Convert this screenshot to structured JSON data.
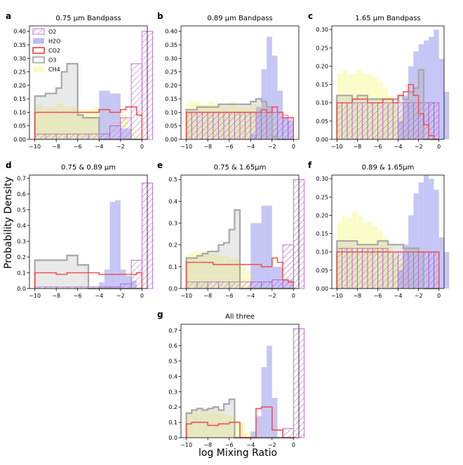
{
  "figure": {
    "ylabel": "Probability Density",
    "xlabel": "log Mixing Ratio"
  },
  "legend": {
    "location": "upper-left of panel a",
    "entries": [
      {
        "name": "O2",
        "style": "hatched",
        "color": "#b44fc8"
      },
      {
        "name": "H2O",
        "style": "fill",
        "color": "#bcbcf4"
      },
      {
        "name": "CO2",
        "style": "step",
        "color": "#ef5350"
      },
      {
        "name": "O3",
        "style": "step",
        "color": "#a8a8a8"
      },
      {
        "name": "CH4",
        "style": "fill",
        "color": "#fbfbc0"
      }
    ]
  },
  "chart_data": [
    {
      "type": "bar",
      "panel_letter": "a",
      "title": "0.75 µm Bandpass",
      "xlim": [
        -10.5,
        0.5
      ],
      "ylim": [
        0,
        0.42
      ],
      "xticks": [
        -10,
        -8,
        -6,
        -4,
        -2,
        0
      ],
      "yticks": [
        0.0,
        0.05,
        0.1,
        0.15,
        0.2,
        0.25,
        0.3,
        0.35,
        0.4
      ],
      "ytick_labels": [
        "0.00",
        "0.05",
        "0.10",
        "0.15",
        "0.20",
        "0.25",
        "0.30",
        "0.35",
        "0.40"
      ],
      "series": [
        {
          "name": "CH4",
          "x0": -10,
          "dx": 0.667,
          "values": [
            0.13,
            0.12,
            0.12,
            0.13,
            0.12,
            0.12,
            0.11,
            0.11,
            0.12,
            0.12,
            0.13,
            0.11,
            0.09,
            0.04,
            0.0
          ]
        },
        {
          "name": "H2O",
          "x0": -10,
          "dx": 1.0,
          "values": [
            0.0,
            0.0,
            0.0,
            0.0,
            0.0,
            0.0,
            0.0,
            0.0,
            0.0,
            0.0,
            0.0
          ]
        },
        {
          "name": "H2O_b",
          "x0": -4,
          "dx": 1.0,
          "values": [
            0.18,
            0.17,
            0.04,
            0.0
          ]
        },
        {
          "name": "O3",
          "x0": -10,
          "dx": 0.5,
          "values": [
            0.16,
            0.16,
            0.17,
            0.17,
            0.19,
            0.25,
            0.28,
            0.28,
            0.09,
            0.08,
            0.08,
            0.08,
            0.0,
            0.0,
            0.0,
            0.0,
            0.0,
            0.0,
            0.0,
            0.0
          ]
        },
        {
          "name": "CO2",
          "x0": -10,
          "dx": 0.5,
          "values": [
            0.1,
            0.1,
            0.1,
            0.1,
            0.1,
            0.1,
            0.1,
            0.1,
            0.1,
            0.1,
            0.1,
            0.1,
            0.11,
            0.11,
            0.1,
            0.1,
            0.11,
            0.12,
            0.12,
            0.09
          ]
        },
        {
          "name": "O2",
          "x0": -10,
          "dx": 1.0,
          "values": [
            0.02,
            0.02,
            0.02,
            0.02,
            0.02,
            0.02,
            0.02,
            0.05,
            0.08,
            0.28,
            0.4
          ]
        }
      ]
    },
    {
      "type": "bar",
      "panel_letter": "b",
      "title": "0.89 µm Bandpass",
      "xlim": [
        -10.5,
        0.5
      ],
      "ylim": [
        0,
        0.42
      ],
      "xticks": [
        -10,
        -8,
        -6,
        -4,
        -2,
        0
      ],
      "yticks": [
        0.0,
        0.05,
        0.1,
        0.15,
        0.2,
        0.25,
        0.3,
        0.35,
        0.4
      ],
      "ytick_labels": [
        "0.00",
        "0.05",
        "0.10",
        "0.15",
        "0.20",
        "0.25",
        "0.30",
        "0.35",
        "0.40"
      ],
      "series": [
        {
          "name": "CH4",
          "x0": -10,
          "dx": 0.667,
          "values": [
            0.14,
            0.14,
            0.13,
            0.14,
            0.13,
            0.12,
            0.14,
            0.12,
            0.12,
            0.13,
            0.13,
            0.12,
            0.1,
            0.05,
            0.0
          ]
        },
        {
          "name": "H2O",
          "x0": -4,
          "dx": 0.5,
          "values": [
            0.02,
            0.12,
            0.26,
            0.38,
            0.31,
            0.18,
            0.08,
            0.07
          ]
        },
        {
          "name": "O3",
          "x0": -10,
          "dx": 0.5,
          "values": [
            0.11,
            0.11,
            0.12,
            0.12,
            0.12,
            0.12,
            0.13,
            0.13,
            0.13,
            0.13,
            0.13,
            0.13,
            0.14,
            0.15,
            0.14,
            0.12,
            0.01,
            0.0,
            0.0,
            0.0
          ]
        },
        {
          "name": "CO2",
          "x0": -10,
          "dx": 0.5,
          "values": [
            0.1,
            0.1,
            0.1,
            0.1,
            0.1,
            0.1,
            0.1,
            0.1,
            0.1,
            0.1,
            0.1,
            0.1,
            0.1,
            0.1,
            0.11,
            0.1,
            0.12,
            0.1,
            0.08,
            0.08
          ]
        },
        {
          "name": "O2",
          "x0": -10,
          "dx": 0.5,
          "values": [
            0.1,
            0.1,
            0.1,
            0.1,
            0.1,
            0.1,
            0.1,
            0.1,
            0.1,
            0.1,
            0.1,
            0.1,
            0.1,
            0.1,
            0.1,
            0.1,
            0.1,
            0.1,
            0.09,
            0.08
          ]
        }
      ]
    },
    {
      "type": "bar",
      "panel_letter": "c",
      "title": "1.65 µm Bandpass",
      "xlim": [
        -10.5,
        0.5
      ],
      "ylim": [
        0,
        0.31
      ],
      "xticks": [
        -10,
        -8,
        -6,
        -4,
        -2,
        0
      ],
      "yticks": [
        0.0,
        0.05,
        0.1,
        0.15,
        0.2,
        0.25,
        0.3
      ],
      "ytick_labels": [
        "0.00",
        "0.05",
        "0.10",
        "0.15",
        "0.20",
        "0.25",
        "0.30"
      ],
      "series": [
        {
          "name": "CH4",
          "x0": -10,
          "dx": 0.5,
          "values": [
            0.18,
            0.19,
            0.18,
            0.18,
            0.19,
            0.18,
            0.18,
            0.17,
            0.16,
            0.14,
            0.12,
            0.09,
            0.06,
            0.03,
            0.0,
            0.0,
            0.0,
            0.0,
            0.0,
            0.0
          ]
        },
        {
          "name": "H2O",
          "x0": -4,
          "dx": 0.5,
          "values": [
            0.05,
            0.12,
            0.2,
            0.24,
            0.26,
            0.27,
            0.28,
            0.3,
            0.22,
            0.13
          ]
        },
        {
          "name": "O3",
          "x0": -10,
          "dx": 0.5,
          "values": [
            0.12,
            0.12,
            0.12,
            0.11,
            0.12,
            0.12,
            0.11,
            0.11,
            0.11,
            0.11,
            0.11,
            0.11,
            0.12,
            0.11,
            0.13,
            0.14,
            0.19,
            0.0,
            0.0,
            0.0
          ]
        },
        {
          "name": "CO2",
          "x0": -10,
          "dx": 0.5,
          "values": [
            0.1,
            0.1,
            0.1,
            0.11,
            0.11,
            0.11,
            0.1,
            0.1,
            0.1,
            0.11,
            0.11,
            0.1,
            0.12,
            0.13,
            0.15,
            0.12,
            0.07,
            0.04,
            0.01,
            0.0
          ]
        },
        {
          "name": "O2",
          "x0": -10,
          "dx": 0.5,
          "values": [
            0.1,
            0.1,
            0.1,
            0.1,
            0.1,
            0.1,
            0.1,
            0.1,
            0.1,
            0.1,
            0.1,
            0.1,
            0.1,
            0.1,
            0.1,
            0.1,
            0.1,
            0.1,
            0.1,
            0.1
          ]
        }
      ]
    },
    {
      "type": "bar",
      "panel_letter": "d",
      "title": "0.75 & 0.89 µm",
      "xlim": [
        -10.5,
        0.5
      ],
      "ylim": [
        0,
        0.72
      ],
      "xticks": [
        -10,
        -8,
        -6,
        -4,
        -2,
        0
      ],
      "yticks": [
        0.0,
        0.1,
        0.2,
        0.3,
        0.4,
        0.5,
        0.6,
        0.7
      ],
      "ytick_labels": [
        "0.0",
        "0.1",
        "0.2",
        "0.3",
        "0.4",
        "0.5",
        "0.6",
        "0.7"
      ],
      "series": [
        {
          "name": "CH4",
          "x0": -10,
          "dx": 1.0,
          "values": [
            0.0,
            0.0,
            0.0,
            0.0,
            0.0,
            0.0,
            0.0,
            0.0,
            0.0,
            0.0
          ]
        },
        {
          "name": "H2O",
          "x0": -4,
          "dx": 0.5,
          "values": [
            0.04,
            0.12,
            0.55,
            0.56,
            0.12,
            0.08,
            0.05,
            0.0
          ]
        },
        {
          "name": "O3",
          "x0": -10,
          "dx": 0.5,
          "values": [
            0.18,
            0.18,
            0.18,
            0.18,
            0.18,
            0.18,
            0.21,
            0.21,
            0.15,
            0.15,
            0.0,
            0.0,
            0.0,
            0.0,
            0.0,
            0.0,
            0.0,
            0.0,
            0.0,
            0.0
          ]
        },
        {
          "name": "CO2",
          "x0": -10,
          "dx": 0.5,
          "values": [
            0.1,
            0.1,
            0.1,
            0.1,
            0.09,
            0.09,
            0.1,
            0.1,
            0.1,
            0.1,
            0.1,
            0.1,
            0.09,
            0.09,
            0.09,
            0.09,
            0.09,
            0.09,
            0.09,
            0.1
          ]
        },
        {
          "name": "O2",
          "x0": -10,
          "dx": 1.0,
          "values": [
            0.01,
            0.01,
            0.01,
            0.01,
            0.01,
            0.01,
            0.01,
            0.01,
            0.03,
            0.18,
            0.67
          ]
        }
      ]
    },
    {
      "type": "bar",
      "panel_letter": "e",
      "title": "0.75 & 1.65µm",
      "xlim": [
        -10.5,
        0.5
      ],
      "ylim": [
        0,
        0.52
      ],
      "xticks": [
        -10,
        -8,
        -6,
        -4,
        -2,
        0
      ],
      "yticks": [
        0.0,
        0.1,
        0.2,
        0.3,
        0.4,
        0.5
      ],
      "ytick_labels": [
        "0.0",
        "0.1",
        "0.2",
        "0.3",
        "0.4",
        "0.5"
      ],
      "series": [
        {
          "name": "CH4",
          "x0": -10,
          "dx": 0.5,
          "values": [
            0.16,
            0.17,
            0.17,
            0.17,
            0.16,
            0.16,
            0.15,
            0.15,
            0.14,
            0.14,
            0.1,
            0.08,
            0.03,
            0.02,
            0.0,
            0.0,
            0.0,
            0.0,
            0.0,
            0.0
          ]
        },
        {
          "name": "H2O",
          "x0": -4,
          "dx": 1.0,
          "values": [
            0.3,
            0.38,
            0.1,
            0.04
          ]
        },
        {
          "name": "O3",
          "x0": -10,
          "dx": 0.5,
          "values": [
            0.14,
            0.14,
            0.15,
            0.16,
            0.17,
            0.17,
            0.2,
            0.21,
            0.27,
            0.36,
            0.0,
            0.0,
            0.0,
            0.0,
            0.0,
            0.0,
            0.0,
            0.0,
            0.0,
            0.0
          ]
        },
        {
          "name": "CO2",
          "x0": -10,
          "dx": 0.5,
          "values": [
            0.12,
            0.12,
            0.12,
            0.12,
            0.12,
            0.11,
            0.11,
            0.11,
            0.11,
            0.11,
            0.11,
            0.11,
            0.11,
            0.11,
            0.1,
            0.1,
            0.14,
            0.12,
            0.04,
            0.03
          ]
        },
        {
          "name": "O2",
          "x0": -10,
          "dx": 1.0,
          "values": [
            0.03,
            0.03,
            0.03,
            0.03,
            0.03,
            0.03,
            0.03,
            0.03,
            0.04,
            0.2,
            0.5
          ]
        }
      ]
    },
    {
      "type": "bar",
      "panel_letter": "f",
      "title": "0.89 & 1.65µm",
      "xlim": [
        -10.5,
        0.5
      ],
      "ylim": [
        0,
        0.31
      ],
      "xticks": [
        -10,
        -8,
        -6,
        -4,
        -2,
        0
      ],
      "yticks": [
        0.0,
        0.05,
        0.1,
        0.15,
        0.2,
        0.25,
        0.3
      ],
      "ytick_labels": [
        "0.00",
        "0.05",
        "0.10",
        "0.15",
        "0.20",
        "0.25",
        "0.30"
      ],
      "series": [
        {
          "name": "CH4",
          "x0": -10,
          "dx": 0.5,
          "values": [
            0.18,
            0.2,
            0.19,
            0.21,
            0.2,
            0.18,
            0.18,
            0.17,
            0.16,
            0.14,
            0.12,
            0.09,
            0.07,
            0.05,
            0.03,
            0.0,
            0.0,
            0.0,
            0.0,
            0.0
          ]
        },
        {
          "name": "H2O",
          "x0": -4,
          "dx": 0.5,
          "values": [
            0.05,
            0.12,
            0.2,
            0.26,
            0.29,
            0.31,
            0.3,
            0.27,
            0.14,
            0.1
          ]
        },
        {
          "name": "O3",
          "x0": -10,
          "dx": 0.5,
          "values": [
            0.13,
            0.13,
            0.13,
            0.13,
            0.12,
            0.12,
            0.12,
            0.12,
            0.13,
            0.13,
            0.12,
            0.12,
            0.12,
            0.11,
            0.11,
            0.11,
            0.1,
            0.0,
            0.0,
            0.0
          ]
        },
        {
          "name": "CO2",
          "x0": -10,
          "dx": 0.5,
          "values": [
            0.1,
            0.1,
            0.1,
            0.1,
            0.1,
            0.1,
            0.1,
            0.1,
            0.1,
            0.1,
            0.1,
            0.1,
            0.1,
            0.1,
            0.1,
            0.1,
            0.1,
            0.1,
            0.1,
            0.1
          ]
        },
        {
          "name": "O2",
          "x0": -10,
          "dx": 0.5,
          "values": [
            0.11,
            0.11,
            0.11,
            0.11,
            0.11,
            0.11,
            0.11,
            0.11,
            0.11,
            0.11,
            0.1,
            0.1,
            0.1,
            0.1,
            0.1,
            0.1,
            0.1,
            0.1,
            0.1,
            0.1
          ]
        }
      ]
    },
    {
      "type": "bar",
      "panel_letter": "g",
      "title": "All three",
      "xlim": [
        -10.5,
        0.5
      ],
      "ylim": [
        0,
        0.74
      ],
      "xticks": [
        -10,
        -8,
        -6,
        -4,
        -2,
        0
      ],
      "yticks": [
        0.0,
        0.1,
        0.2,
        0.3,
        0.4,
        0.5,
        0.6,
        0.7
      ],
      "ytick_labels": [
        "0.0",
        "0.1",
        "0.2",
        "0.3",
        "0.4",
        "0.5",
        "0.6",
        "0.7"
      ],
      "series": [
        {
          "name": "CH4",
          "x0": -10,
          "dx": 0.5,
          "values": [
            0.17,
            0.17,
            0.17,
            0.17,
            0.17,
            0.17,
            0.16,
            0.15,
            0.14,
            0.12,
            0.1,
            0.04,
            0.0,
            0.0,
            0.0,
            0.0,
            0.0,
            0.0,
            0.0,
            0.0
          ]
        },
        {
          "name": "H2O",
          "x0": -4,
          "dx": 0.5,
          "values": [
            0.04,
            0.14,
            0.46,
            0.6,
            0.26,
            0.0,
            0.0,
            0.0
          ]
        },
        {
          "name": "O3",
          "x0": -10,
          "dx": 0.5,
          "values": [
            0.16,
            0.18,
            0.19,
            0.18,
            0.19,
            0.2,
            0.18,
            0.22,
            0.25,
            0.0,
            0.0,
            0.0,
            0.0,
            0.0,
            0.0,
            0.0,
            0.0,
            0.0,
            0.0,
            0.0
          ]
        },
        {
          "name": "CO2",
          "x0": -10,
          "dx": 0.5,
          "values": [
            0.09,
            0.1,
            0.1,
            0.1,
            0.08,
            0.08,
            0.09,
            0.09,
            0.1,
            0.1,
            0.0,
            0.0,
            0.0,
            0.19,
            0.2,
            0.2,
            0.05,
            0.05,
            0.0,
            0.0
          ]
        },
        {
          "name": "O2",
          "x0": -10,
          "dx": 1.0,
          "values": [
            0.0,
            0.0,
            0.0,
            0.0,
            0.0,
            0.0,
            0.0,
            0.0,
            0.0,
            0.06,
            0.71
          ]
        }
      ]
    }
  ]
}
